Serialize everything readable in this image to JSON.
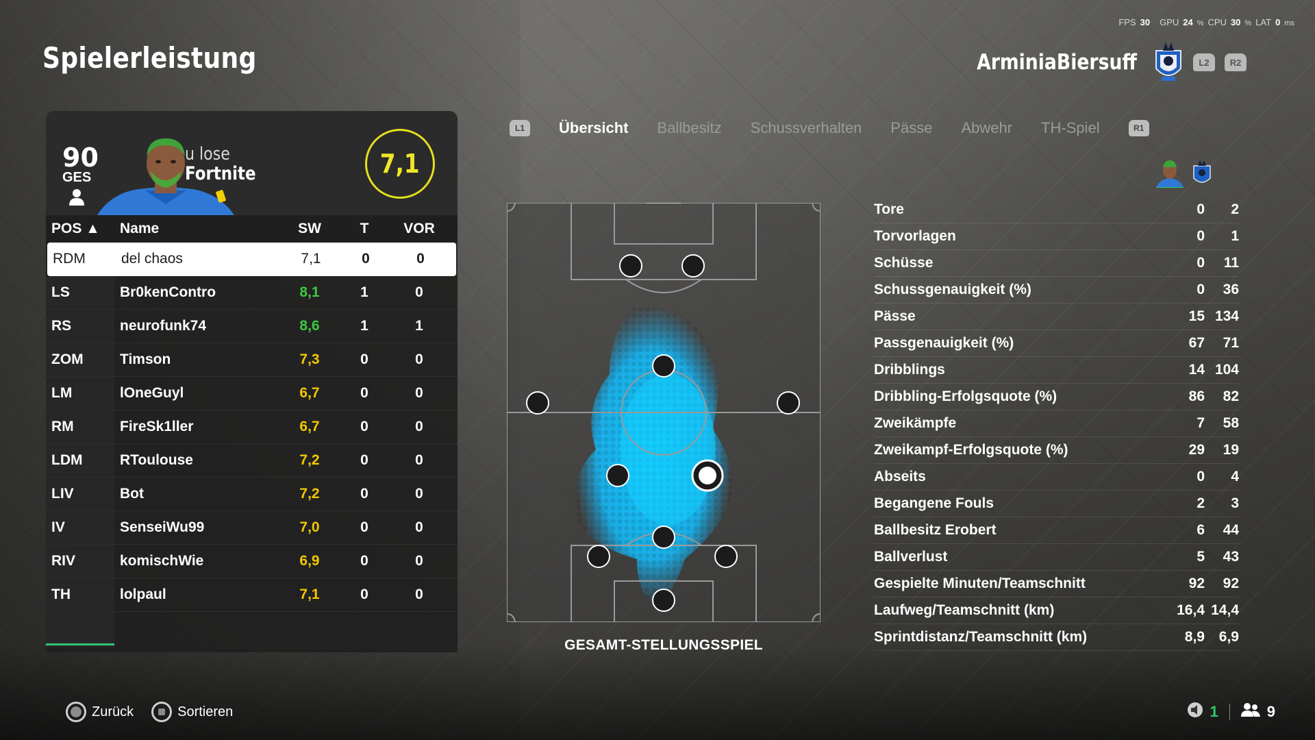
{
  "perf": {
    "fps_label": "FPS",
    "fps": "30",
    "gpu_label": "GPU",
    "gpu": "24",
    "cpu_label": "CPU",
    "cpu": "30",
    "lat_label": "LAT",
    "lat": "0",
    "pct": "%",
    "ms": "ms"
  },
  "title": "Spielerleistung",
  "team": {
    "name": "ArminiaBiersuff",
    "l2": "L2",
    "r2": "R2"
  },
  "player_card": {
    "ges_value": "90",
    "ges_label": "GES",
    "name_line1": "u lose",
    "name_line2": "Fortnite",
    "rating": "7,1"
  },
  "table": {
    "headers": {
      "pos": "POS ▲",
      "name": "Name",
      "sw": "SW",
      "t": "T",
      "vor": "VOR"
    },
    "rows": [
      {
        "pos": "RDM",
        "name": "del chaos",
        "sw": "7,1",
        "t": "0",
        "vor": "0"
      },
      {
        "pos": "LS",
        "name": "Br0kenContro",
        "sw": "8,1",
        "t": "1",
        "vor": "0"
      },
      {
        "pos": "RS",
        "name": "neurofunk74",
        "sw": "8,6",
        "t": "1",
        "vor": "1"
      },
      {
        "pos": "ZOM",
        "name": "Timson",
        "sw": "7,3",
        "t": "0",
        "vor": "0"
      },
      {
        "pos": "LM",
        "name": "lOneGuyl",
        "sw": "6,7",
        "t": "0",
        "vor": "0"
      },
      {
        "pos": "RM",
        "name": "FireSk1ller",
        "sw": "6,7",
        "t": "0",
        "vor": "0"
      },
      {
        "pos": "LDM",
        "name": "RToulouse",
        "sw": "7,2",
        "t": "0",
        "vor": "0"
      },
      {
        "pos": "LIV",
        "name": "Bot",
        "sw": "7,2",
        "t": "0",
        "vor": "0"
      },
      {
        "pos": "IV",
        "name": "SenseiWu99",
        "sw": "7,0",
        "t": "0",
        "vor": "0"
      },
      {
        "pos": "RIV",
        "name": "komischWie",
        "sw": "6,9",
        "t": "0",
        "vor": "0"
      },
      {
        "pos": "TH",
        "name": "lolpaul",
        "sw": "7,1",
        "t": "0",
        "vor": "0"
      }
    ]
  },
  "tabs": {
    "l1": "L1",
    "r1": "R1",
    "items": [
      "Übersicht",
      "Ballbesitz",
      "Schussverhalten",
      "Pässe",
      "Abwehr",
      "TH-Spiel"
    ]
  },
  "pitch_caption": "GESAMT-STELLUNGSSPIEL",
  "stats": [
    {
      "label": "Tore",
      "player": "0",
      "team": "2"
    },
    {
      "label": "Torvorlagen",
      "player": "0",
      "team": "1"
    },
    {
      "label": "Schüsse",
      "player": "0",
      "team": "11"
    },
    {
      "label": "Schussgenauigkeit (%)",
      "player": "0",
      "team": "36"
    },
    {
      "label": "Pässe",
      "player": "15",
      "team": "134"
    },
    {
      "label": "Passgenauigkeit (%)",
      "player": "67",
      "team": "71"
    },
    {
      "label": "Dribblings",
      "player": "14",
      "team": "104"
    },
    {
      "label": "Dribbling-Erfolgsquote (%)",
      "player": "86",
      "team": "82"
    },
    {
      "label": "Zweikämpfe",
      "player": "7",
      "team": "58"
    },
    {
      "label": "Zweikampf-Erfolgsquote (%)",
      "player": "29",
      "team": "19"
    },
    {
      "label": "Abseits",
      "player": "0",
      "team": "4"
    },
    {
      "label": "Begangene Fouls",
      "player": "2",
      "team": "3"
    },
    {
      "label": "Ballbesitz Erobert",
      "player": "6",
      "team": "44"
    },
    {
      "label": "Ballverlust",
      "player": "5",
      "team": "43"
    },
    {
      "label": "Gespielte Minuten/Teamschnitt",
      "player": "92",
      "team": "92"
    },
    {
      "label": "Laufweg/Teamschnitt (km)",
      "player": "16,4",
      "team": "14,4"
    },
    {
      "label": "Sprintdistanz/Teamschnitt (km)",
      "player": "8,9",
      "team": "6,9"
    }
  ],
  "footer": {
    "back": "Zurück",
    "sort": "Sortieren",
    "count_a": "1",
    "count_b": "9"
  },
  "colors": {
    "accent_yellow": "#f2c800",
    "accent_green": "#3dc93d",
    "heatmap_blue": "#1ab7f2"
  },
  "icons": [
    "person-icon",
    "crest-icon",
    "circle-button-icon",
    "square-button-icon",
    "speaker-icon",
    "people-icon"
  ]
}
